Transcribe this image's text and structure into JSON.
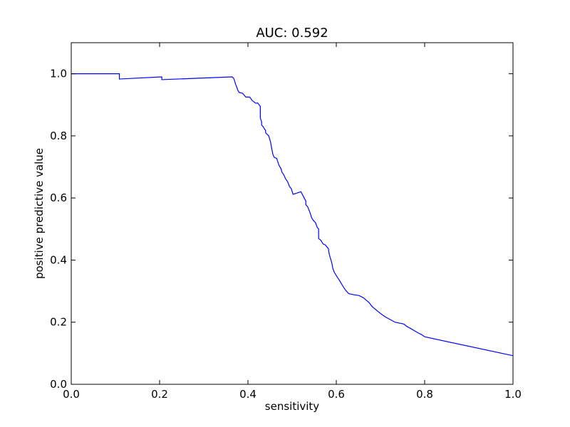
{
  "chart_data": {
    "type": "line",
    "title": "AUC: 0.592",
    "xlabel": "sensitivity",
    "ylabel": "positive predictive value",
    "xlim": [
      0.0,
      1.0
    ],
    "ylim": [
      0.0,
      1.1
    ],
    "x_ticks": [
      0.0,
      0.2,
      0.4,
      0.6,
      0.8,
      1.0
    ],
    "y_ticks": [
      0.0,
      0.2,
      0.4,
      0.6,
      0.8,
      1.0
    ],
    "x_tick_labels": [
      "0.0",
      "0.2",
      "0.4",
      "0.6",
      "0.8",
      "1.0"
    ],
    "y_tick_labels": [
      "0.0",
      "0.2",
      "0.4",
      "0.6",
      "0.8",
      "1.0"
    ],
    "grid": false,
    "series": [
      {
        "color": "#0000ff",
        "x": [
          0.0,
          0.003,
          0.109,
          0.109,
          0.205,
          0.205,
          0.364,
          0.368,
          0.37,
          0.372,
          0.375,
          0.377,
          0.38,
          0.388,
          0.395,
          0.404,
          0.41,
          0.418,
          0.422,
          0.428,
          0.428,
          0.431,
          0.431,
          0.434,
          0.44,
          0.44,
          0.447,
          0.451,
          0.456,
          0.458,
          0.46,
          0.465,
          0.47,
          0.475,
          0.477,
          0.481,
          0.485,
          0.49,
          0.494,
          0.498,
          0.502,
          0.509,
          0.513,
          0.52,
          0.531,
          0.531,
          0.535,
          0.54,
          0.544,
          0.547,
          0.553,
          0.557,
          0.56,
          0.56,
          0.565,
          0.57,
          0.575,
          0.582,
          0.584,
          0.59,
          0.592,
          0.595,
          0.6,
          0.607,
          0.614,
          0.621,
          0.628,
          0.641,
          0.651,
          0.66,
          0.667,
          0.675,
          0.68,
          0.688,
          0.694,
          0.702,
          0.71,
          0.72,
          0.733,
          0.743,
          0.753,
          0.76,
          0.768,
          0.776,
          0.786,
          0.793,
          0.8,
          1.0
        ],
        "y": [
          1.0,
          1.0,
          1.0,
          0.983,
          0.99,
          0.981,
          0.99,
          0.985,
          0.976,
          0.966,
          0.956,
          0.947,
          0.94,
          0.937,
          0.925,
          0.925,
          0.913,
          0.905,
          0.906,
          0.895,
          0.857,
          0.845,
          0.835,
          0.83,
          0.817,
          0.81,
          0.8,
          0.781,
          0.743,
          0.735,
          0.73,
          0.728,
          0.706,
          0.694,
          0.683,
          0.675,
          0.662,
          0.652,
          0.637,
          0.63,
          0.612,
          0.615,
          0.617,
          0.62,
          0.59,
          0.578,
          0.572,
          0.555,
          0.537,
          0.53,
          0.52,
          0.505,
          0.5,
          0.469,
          0.464,
          0.452,
          0.449,
          0.437,
          0.419,
          0.39,
          0.374,
          0.362,
          0.35,
          0.335,
          0.318,
          0.303,
          0.292,
          0.288,
          0.286,
          0.28,
          0.272,
          0.262,
          0.252,
          0.242,
          0.235,
          0.226,
          0.218,
          0.21,
          0.2,
          0.197,
          0.194,
          0.186,
          0.18,
          0.173,
          0.165,
          0.16,
          0.153,
          0.092
        ]
      }
    ]
  }
}
